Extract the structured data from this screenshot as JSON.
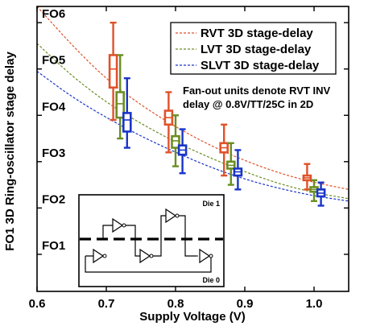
{
  "chart_data": {
    "type": "line",
    "xlabel": "Supply Voltage (V)",
    "ylabel": "FO1 3D Ring-oscillator stage delay",
    "xlim": [
      0.6,
      1.05
    ],
    "ylim": [
      0.2,
      6.35
    ],
    "x_ticks": [
      0.6,
      0.7,
      0.8,
      0.9,
      1.0
    ],
    "x_tick_labels": [
      "0.6",
      "0.7",
      "0.8",
      "0.9",
      "1.0"
    ],
    "y_ticks": [
      1,
      2,
      3,
      4,
      5,
      6
    ],
    "y_tick_labels": [
      "FO1",
      "FO2",
      "FO3",
      "FO4",
      "FO5",
      "FO6"
    ],
    "grid": false,
    "legend_position": "top-right",
    "annotation": [
      "Fan-out units denote RVT INV",
      "delay @ 0.8V/TT/25C in 2D"
    ],
    "inset": {
      "die_top_label": "Die 1",
      "die_bottom_label": "Die 0"
    },
    "series": [
      {
        "name": "RVT 3D stage-delay",
        "color": "#e0522a",
        "curve": {
          "x": [
            0.6,
            0.65,
            0.7,
            0.75,
            0.8,
            0.85,
            0.9,
            0.95,
            1.0,
            1.05
          ],
          "y": [
            6.35,
            5.52,
            4.78,
            4.22,
            3.75,
            3.35,
            3.02,
            2.75,
            2.55,
            2.4
          ]
        },
        "boxes": [
          {
            "x": 0.71,
            "q1": 4.6,
            "median": 5.0,
            "q3": 5.3,
            "min": 3.9,
            "max": 6.0
          },
          {
            "x": 0.79,
            "q1": 3.8,
            "median": 3.95,
            "q3": 4.1,
            "min": 3.2,
            "max": 4.5
          },
          {
            "x": 0.87,
            "q1": 3.2,
            "median": 3.3,
            "q3": 3.4,
            "min": 2.7,
            "max": 3.8
          },
          {
            "x": 0.99,
            "q1": 2.6,
            "median": 2.65,
            "q3": 2.7,
            "min": 2.4,
            "max": 2.95
          }
        ]
      },
      {
        "name": "LVT 3D stage-delay",
        "color": "#6b8e23",
        "curve": {
          "x": [
            0.6,
            0.65,
            0.7,
            0.75,
            0.8,
            0.85,
            0.9,
            0.95,
            1.0,
            1.05
          ],
          "y": [
            5.55,
            4.85,
            4.28,
            3.82,
            3.42,
            3.08,
            2.78,
            2.52,
            2.33,
            2.2
          ]
        },
        "boxes": [
          {
            "x": 0.72,
            "q1": 3.95,
            "median": 4.25,
            "q3": 4.5,
            "min": 3.5,
            "max": 5.3
          },
          {
            "x": 0.8,
            "q1": 3.3,
            "median": 3.45,
            "q3": 3.55,
            "min": 2.9,
            "max": 4.0
          },
          {
            "x": 0.88,
            "q1": 2.85,
            "median": 2.92,
            "q3": 3.0,
            "min": 2.5,
            "max": 3.4
          },
          {
            "x": 1.0,
            "q1": 2.35,
            "median": 2.4,
            "q3": 2.45,
            "min": 2.15,
            "max": 2.6
          }
        ]
      },
      {
        "name": "SLVT 3D stage-delay",
        "color": "#1a35c8",
        "curve": {
          "x": [
            0.6,
            0.65,
            0.7,
            0.75,
            0.8,
            0.85,
            0.9,
            0.95,
            1.0,
            1.05
          ],
          "y": [
            4.95,
            4.4,
            3.95,
            3.55,
            3.2,
            2.88,
            2.62,
            2.42,
            2.26,
            2.15
          ]
        },
        "boxes": [
          {
            "x": 0.73,
            "q1": 3.65,
            "median": 3.9,
            "q3": 4.05,
            "min": 3.3,
            "max": 4.8
          },
          {
            "x": 0.81,
            "q1": 3.15,
            "median": 3.25,
            "q3": 3.35,
            "min": 2.75,
            "max": 3.7
          },
          {
            "x": 0.89,
            "q1": 2.7,
            "median": 2.78,
            "q3": 2.85,
            "min": 2.4,
            "max": 3.25
          },
          {
            "x": 1.01,
            "q1": 2.25,
            "median": 2.32,
            "q3": 2.4,
            "min": 2.05,
            "max": 2.55
          }
        ]
      }
    ]
  }
}
